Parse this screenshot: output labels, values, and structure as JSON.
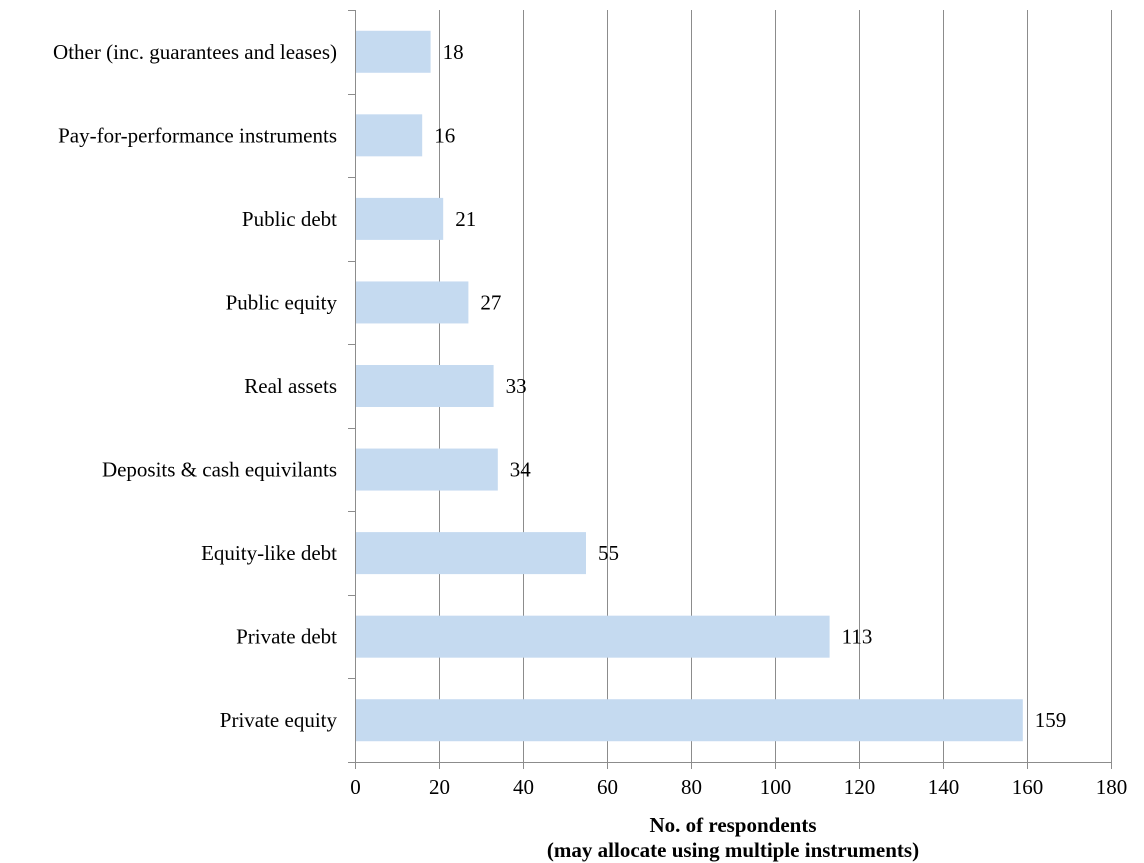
{
  "chart_data": {
    "type": "bar",
    "orientation": "horizontal",
    "categories": [
      "Other (inc. guarantees and leases)",
      "Pay-for-performance instruments",
      "Public debt",
      "Public equity",
      "Real assets",
      "Deposits & cash equivilants",
      "Equity-like debt",
      "Private debt",
      "Private equity"
    ],
    "values": [
      18,
      16,
      21,
      27,
      33,
      34,
      55,
      113,
      159
    ],
    "title": "",
    "xlabel_line1": "No. of respondents",
    "xlabel_line2": "(may allocate  using multiple instruments)",
    "ylabel": "",
    "xlim": [
      0,
      180
    ],
    "xticks": [
      0,
      20,
      40,
      60,
      80,
      100,
      120,
      140,
      160,
      180
    ],
    "grid": "vertical",
    "legend": "none",
    "bar_color": "#c5daf0",
    "grid_color": "#8c8c8c"
  }
}
